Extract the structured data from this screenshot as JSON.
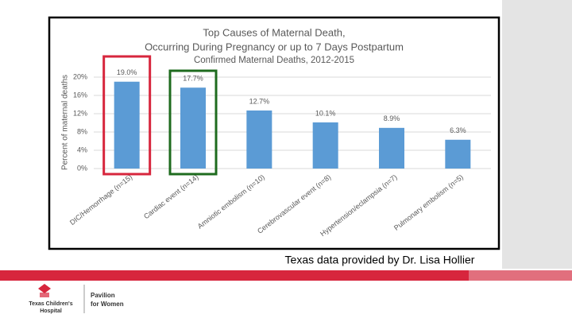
{
  "chart_data": {
    "type": "bar",
    "title": [
      "Top Causes of Maternal Death,",
      "Occurring During Pregnancy or up to 7 Days Postpartum",
      "Confirmed Maternal Deaths, 2012-2015"
    ],
    "y_label": "Percent of maternal deaths",
    "categories": [
      "DIC/Hemorrhage (n=15)",
      "Cardiac event (n=14)",
      "Amniotic embolism (n=10)",
      "Cerebrovascular event (n=8)",
      "Hypertension/eclampsia (n=7)",
      "Pulmonary embolism (n=5)"
    ],
    "values": [
      19.0,
      17.7,
      12.7,
      10.1,
      8.9,
      6.3
    ],
    "value_labels": [
      "19.0%",
      "17.7%",
      "12.7%",
      "10.1%",
      "8.9%",
      "6.3%"
    ],
    "color": "#5b9bd5",
    "ylim": [
      0,
      20
    ],
    "yticks": [
      {
        "value": 0,
        "label": "0%"
      },
      {
        "value": 4,
        "label": "4%"
      },
      {
        "value": 8,
        "label": "8%"
      },
      {
        "value": 12,
        "label": "12%"
      },
      {
        "value": 16,
        "label": "16%"
      },
      {
        "value": 20,
        "label": "20%"
      }
    ],
    "grid": true
  },
  "caption": "Texas data provided by Dr. Lisa Hollier",
  "logo": {
    "hospital": [
      "Texas Children's",
      "Hospital"
    ],
    "division": [
      "Pavilion",
      "for Women"
    ]
  }
}
